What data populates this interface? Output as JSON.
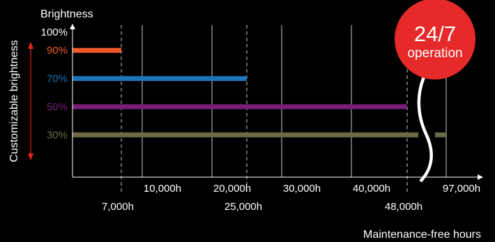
{
  "chart_data": {
    "type": "bar",
    "orientation": "horizontal",
    "y_title": "Brightness",
    "y_side_label": "Customizable brightness",
    "y_top_label": "100%",
    "x_title": "Maintenance-free hours",
    "x_break_between": [
      48000,
      97000
    ],
    "x_ticks_major": [
      "10,000h",
      "20,000h",
      "30,000h",
      "40,000h",
      "97,000h"
    ],
    "x_ticks_marked": [
      "7,000h",
      "25,000h",
      "48,000h"
    ],
    "series": [
      {
        "label": "90%",
        "brightness": 90,
        "hours": 7000,
        "color": "#f05a28"
      },
      {
        "label": "70%",
        "brightness": 70,
        "hours": 25000,
        "color": "#1b75bb"
      },
      {
        "label": "50%",
        "brightness": 50,
        "hours": 48000,
        "color": "#7b1e7a"
      },
      {
        "label": "30%",
        "brightness": 30,
        "hours": 97000,
        "color": "#6b6b45"
      }
    ],
    "badge": {
      "line1": "24/7",
      "line2": "operation",
      "color": "#e62a2a"
    },
    "colors": {
      "axis": "#ffffff",
      "grid": "#ffffff",
      "arrow": "#e2231a"
    }
  }
}
